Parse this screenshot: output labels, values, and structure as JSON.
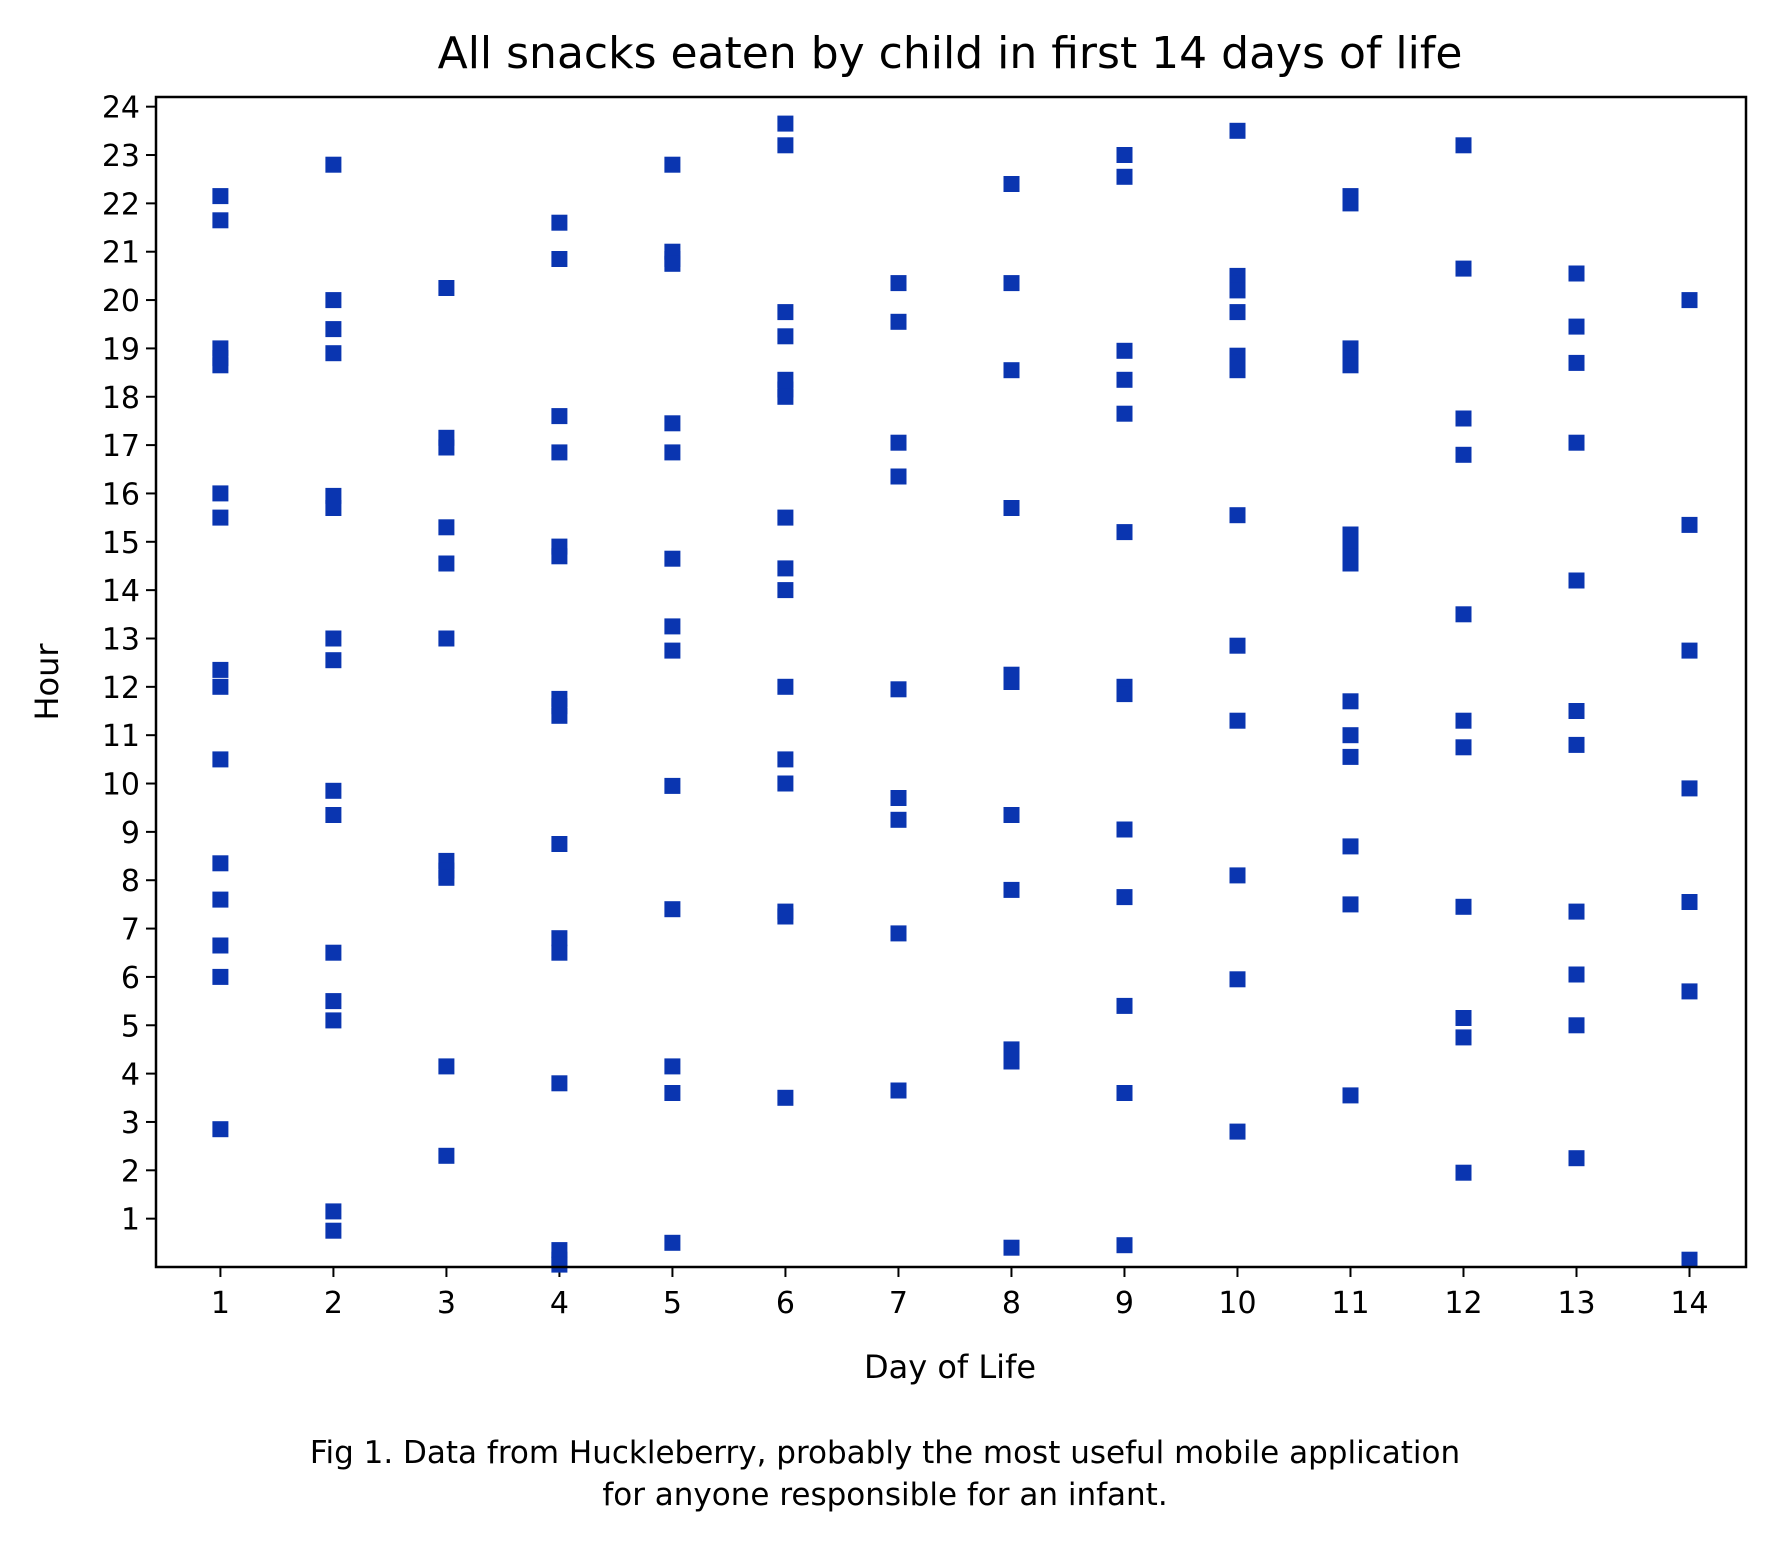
{
  "caption": {
    "line1": "Fig 1. Data from Huckleberry, probably the most useful mobile application",
    "line2": "for anyone responsible for an infant."
  },
  "chart_data": {
    "type": "scatter",
    "title": "All snacks eaten by child in first 14 days of life",
    "xlabel": "Day of Life",
    "ylabel": "Hour",
    "xlim": [
      0.43,
      14.5
    ],
    "ylim": [
      0,
      24.2
    ],
    "xticks": [
      1,
      2,
      3,
      4,
      5,
      6,
      7,
      8,
      9,
      10,
      11,
      12,
      13,
      14
    ],
    "yticks": [
      1,
      2,
      3,
      4,
      5,
      6,
      7,
      8,
      9,
      10,
      11,
      12,
      13,
      14,
      15,
      16,
      17,
      18,
      19,
      20,
      21,
      22,
      23,
      24
    ],
    "marker": "square",
    "color": "#0a35b0",
    "grid": false,
    "legend": false,
    "series": [
      {
        "x": 1,
        "y": [
          22.15,
          21.65,
          19.0,
          18.8,
          18.65,
          16.0,
          15.5,
          12.35,
          12.0,
          10.5,
          8.35,
          7.6,
          6.65,
          6.0,
          2.85
        ]
      },
      {
        "x": 2,
        "y": [
          22.8,
          20.0,
          19.4,
          18.9,
          15.95,
          15.7,
          13.0,
          12.55,
          9.85,
          9.35,
          6.5,
          5.5,
          5.1,
          1.15,
          0.75
        ]
      },
      {
        "x": 3,
        "y": [
          20.25,
          17.15,
          16.95,
          15.3,
          14.55,
          13.0,
          8.4,
          8.2,
          8.05,
          4.15,
          2.3
        ]
      },
      {
        "x": 4,
        "y": [
          21.6,
          20.85,
          17.6,
          16.85,
          14.9,
          14.7,
          11.75,
          11.6,
          11.4,
          8.75,
          6.8,
          6.5,
          3.8,
          0.35,
          0.15,
          0.05
        ]
      },
      {
        "x": 5,
        "y": [
          22.8,
          21.0,
          20.85,
          20.75,
          17.45,
          16.85,
          14.65,
          13.25,
          12.75,
          9.95,
          7.4,
          4.15,
          3.6,
          0.5
        ]
      },
      {
        "x": 6,
        "y": [
          23.65,
          23.2,
          19.75,
          19.25,
          18.35,
          18.15,
          18.0,
          15.5,
          14.45,
          14.0,
          12.0,
          10.5,
          10.0,
          7.35,
          7.25,
          3.5
        ]
      },
      {
        "x": 7,
        "y": [
          20.35,
          19.55,
          17.05,
          16.35,
          11.95,
          9.7,
          9.25,
          6.9,
          3.65
        ]
      },
      {
        "x": 8,
        "y": [
          22.4,
          20.35,
          18.55,
          15.7,
          12.25,
          12.1,
          9.35,
          7.8,
          4.5,
          4.25,
          0.4
        ]
      },
      {
        "x": 9,
        "y": [
          23.0,
          22.55,
          18.95,
          18.35,
          17.65,
          15.2,
          12.0,
          11.85,
          9.05,
          7.65,
          5.4,
          3.6,
          0.45
        ]
      },
      {
        "x": 10,
        "y": [
          23.5,
          20.5,
          20.35,
          20.2,
          19.75,
          18.85,
          18.7,
          18.55,
          15.55,
          12.85,
          11.3,
          8.1,
          5.95,
          2.8
        ]
      },
      {
        "x": 11,
        "y": [
          22.15,
          22.0,
          19.0,
          18.8,
          18.65,
          15.15,
          14.85,
          14.7,
          14.55,
          11.7,
          11.0,
          10.55,
          8.7,
          7.5,
          3.55
        ]
      },
      {
        "x": 12,
        "y": [
          23.2,
          20.65,
          17.55,
          16.8,
          13.5,
          11.3,
          10.75,
          7.45,
          5.15,
          4.75,
          1.95
        ]
      },
      {
        "x": 13,
        "y": [
          20.55,
          19.45,
          18.7,
          17.05,
          14.2,
          11.5,
          10.8,
          7.35,
          6.05,
          5.0,
          2.25
        ]
      },
      {
        "x": 14,
        "y": [
          20.0,
          15.35,
          12.75,
          9.9,
          7.55,
          5.7,
          0.15
        ]
      }
    ]
  }
}
